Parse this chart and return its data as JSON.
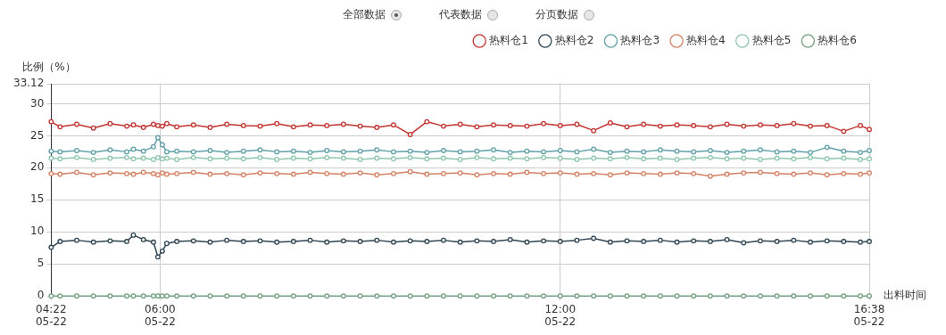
{
  "chart_data": {
    "type": "line",
    "ylabel": "比例（%）",
    "xlabel": "出料时间",
    "annotations": [
      "全部数据",
      "代表数据",
      "分页数据"
    ],
    "x": [
      "--05-22T04:22",
      "--05-22T04:30",
      "--05-22T04:45",
      "--05-22T05:00",
      "--05-22T05:15",
      "--05-22T05:30",
      "--05-22T05:36",
      "--05-22T05:45",
      "--05-22T05:54",
      "--05-22T05:58",
      "--05-22T06:02",
      "--05-22T06:06",
      "--05-22T06:15",
      "--05-22T06:30",
      "--05-22T06:45",
      "--05-22T07:00",
      "--05-22T07:15",
      "--05-22T07:30",
      "--05-22T07:45",
      "--05-22T08:00",
      "--05-22T08:15",
      "--05-22T08:30",
      "--05-22T08:45",
      "--05-22T09:00",
      "--05-22T09:15",
      "--05-22T09:30",
      "--05-22T09:45",
      "--05-22T10:00",
      "--05-22T10:15",
      "--05-22T10:30",
      "--05-22T10:45",
      "--05-22T11:00",
      "--05-22T11:15",
      "--05-22T11:30",
      "--05-22T11:45",
      "--05-22T12:00",
      "--05-22T12:15",
      "--05-22T12:30",
      "--05-22T12:45",
      "--05-22T13:00",
      "--05-22T13:15",
      "--05-22T13:30",
      "--05-22T13:45",
      "--05-22T14:00",
      "--05-22T14:15",
      "--05-22T14:30",
      "--05-22T14:45",
      "--05-22T15:00",
      "--05-22T15:15",
      "--05-22T15:30",
      "--05-22T15:45",
      "--05-22T16:00",
      "--05-22T16:15",
      "--05-22T16:30",
      "--05-22T16:38"
    ],
    "series": [
      {
        "name": "热料仓1",
        "color": "#c23531",
        "values": [
          27.2,
          26.4,
          26.8,
          26.2,
          26.9,
          26.5,
          26.7,
          26.3,
          26.8,
          26.6,
          26.5,
          26.9,
          26.4,
          26.7,
          26.3,
          26.8,
          26.6,
          26.5,
          26.9,
          26.4,
          26.7,
          26.6,
          26.8,
          26.5,
          26.3,
          26.7,
          25.2,
          27.2,
          26.5,
          26.8,
          26.4,
          26.7,
          26.6,
          26.5,
          26.9,
          26.6,
          26.8,
          25.8,
          27.0,
          26.4,
          26.8,
          26.5,
          26.7,
          26.6,
          26.4,
          26.8,
          26.5,
          26.7,
          26.6,
          26.9,
          26.5,
          26.6,
          25.7,
          26.6,
          26.0
        ]
      },
      {
        "name": "热料仓2",
        "color": "#2f4554",
        "values": [
          7.6,
          8.5,
          8.7,
          8.4,
          8.6,
          8.5,
          9.5,
          8.8,
          8.4,
          6.1,
          7.0,
          8.2,
          8.5,
          8.6,
          8.4,
          8.7,
          8.5,
          8.6,
          8.4,
          8.5,
          8.7,
          8.4,
          8.6,
          8.5,
          8.7,
          8.4,
          8.6,
          8.5,
          8.7,
          8.4,
          8.6,
          8.5,
          8.8,
          8.4,
          8.6,
          8.5,
          8.7,
          9.0,
          8.4,
          8.6,
          8.5,
          8.7,
          8.4,
          8.6,
          8.5,
          8.8,
          8.3,
          8.6,
          8.5,
          8.7,
          8.4,
          8.6,
          8.5,
          8.4,
          8.5
        ]
      },
      {
        "name": "热料仓3",
        "color": "#61a0a8",
        "values": [
          22.6,
          22.5,
          22.7,
          22.4,
          22.8,
          22.5,
          22.9,
          22.6,
          23.3,
          24.7,
          23.6,
          22.5,
          22.6,
          22.5,
          22.7,
          22.4,
          22.6,
          22.8,
          22.5,
          22.6,
          22.4,
          22.7,
          22.5,
          22.6,
          22.8,
          22.5,
          22.6,
          22.4,
          22.7,
          22.5,
          22.6,
          22.8,
          22.4,
          22.6,
          22.5,
          22.7,
          22.5,
          22.9,
          22.4,
          22.6,
          22.5,
          22.8,
          22.6,
          22.5,
          22.7,
          22.4,
          22.6,
          22.8,
          22.5,
          22.6,
          22.4,
          23.2,
          22.6,
          22.4,
          22.7
        ]
      },
      {
        "name": "热料仓4",
        "color": "#d48265",
        "values": [
          19.1,
          19.0,
          19.3,
          18.9,
          19.2,
          19.1,
          19.0,
          19.3,
          19.1,
          18.9,
          19.2,
          19.0,
          19.1,
          19.3,
          19.0,
          19.1,
          18.9,
          19.2,
          19.1,
          19.0,
          19.3,
          19.1,
          19.0,
          19.2,
          18.9,
          19.1,
          19.4,
          19.0,
          19.1,
          19.2,
          18.9,
          19.1,
          19.0,
          19.3,
          19.1,
          19.2,
          19.0,
          19.1,
          18.9,
          19.2,
          19.1,
          19.0,
          19.2,
          19.1,
          18.7,
          19.0,
          19.2,
          19.3,
          19.1,
          19.0,
          19.2,
          18.9,
          19.1,
          19.0,
          19.2
        ]
      },
      {
        "name": "热料仓5",
        "color": "#91c7ae",
        "values": [
          21.5,
          21.4,
          21.6,
          21.3,
          21.5,
          21.6,
          21.4,
          21.5,
          21.3,
          21.6,
          21.4,
          21.5,
          21.3,
          21.6,
          21.4,
          21.5,
          21.4,
          21.6,
          21.3,
          21.5,
          21.4,
          21.6,
          21.5,
          21.3,
          21.5,
          21.4,
          21.6,
          21.4,
          21.5,
          21.3,
          21.6,
          21.4,
          21.5,
          21.4,
          21.6,
          21.5,
          21.3,
          21.5,
          21.4,
          21.6,
          21.4,
          21.5,
          21.3,
          21.5,
          21.6,
          21.4,
          21.5,
          21.3,
          21.5,
          21.4,
          21.6,
          21.4,
          21.5,
          21.3,
          21.4
        ]
      },
      {
        "name": "热料仓6",
        "color": "#749f83",
        "values": [
          0,
          0,
          0,
          0,
          0,
          0,
          0,
          0,
          0,
          0,
          0,
          0,
          0,
          0,
          0,
          0,
          0,
          0,
          0,
          0,
          0,
          0,
          0,
          0,
          0,
          0,
          0,
          0,
          0,
          0,
          0,
          0,
          0,
          0,
          0,
          0,
          0,
          0,
          0,
          0,
          0,
          0,
          0,
          0,
          0,
          0,
          0,
          0,
          0,
          0,
          0,
          0,
          0,
          0,
          0
        ]
      }
    ],
    "xlim": [
      "--05-22T04:22",
      "--05-22T16:38"
    ],
    "xticks": [
      {
        "value": "--05-22T04:22",
        "label": "04:22\n05-22"
      },
      {
        "value": "--05-22T06:00",
        "label": "06:00\n05-22"
      },
      {
        "value": "--05-22T12:00",
        "label": "12:00\n05-22"
      },
      {
        "value": "--05-22T16:38",
        "label": "16:38\n05-22"
      }
    ],
    "ylim": [
      0,
      33.12
    ],
    "yticks": [
      0,
      5,
      10,
      15,
      20,
      25,
      30,
      33.12
    ],
    "grid": true,
    "legend": "top right",
    "marker": "circle",
    "line_style": "solid"
  }
}
